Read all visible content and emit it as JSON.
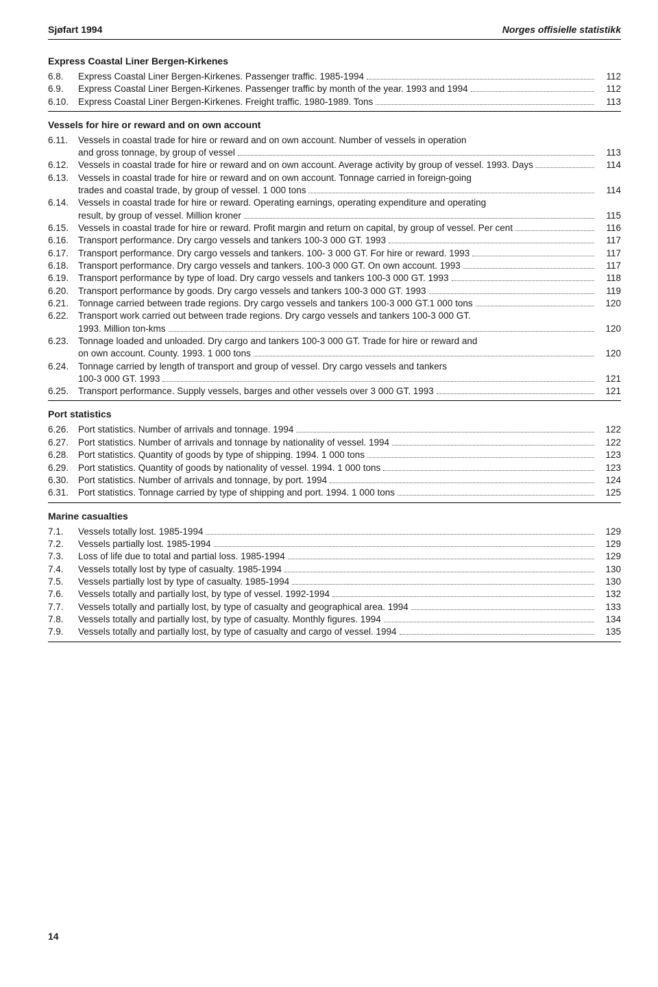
{
  "header": {
    "left": "Sjøfart 1994",
    "right": "Norges offisielle statistikk"
  },
  "sections": [
    {
      "heading": "Express Coastal Liner Bergen-Kirkenes",
      "entries": [
        {
          "num": "6.8.",
          "text": "Express Coastal Liner Bergen-Kirkenes.  Passenger traffic.  1985-1994",
          "page": "112"
        },
        {
          "num": "6.9.",
          "text": "Express Coastal Liner Bergen-Kirkenes.  Passenger traffic by month of the year.  1993 and 1994",
          "page": "112"
        },
        {
          "num": "6.10.",
          "text": "Express Coastal Liner Bergen-Kirkenes.  Freight traffic.  1980-1989.  Tons",
          "page": "113"
        }
      ]
    },
    {
      "heading": "Vessels for hire or reward and on own account",
      "entries": [
        {
          "num": "6.11.",
          "text": "Vessels in coastal trade for hire or reward and on own account.  Number of vessels in operation",
          "cont": "and gross tonnage, by group of vessel",
          "page": "113"
        },
        {
          "num": "6.12.",
          "text": "Vessels in coastal trade for hire or reward and on own account.  Average activity by group of vessel.  1993. Days",
          "page": "114"
        },
        {
          "num": "6.13.",
          "text": "Vessels in coastal trade for hire or reward and on own account.  Tonnage carried in foreign-going",
          "cont": "trades and coastal trade, by group of vessel.  1 000 tons",
          "page": "114"
        },
        {
          "num": "6.14.",
          "text": "Vessels in coastal trade for hire or reward.  Operating earnings, operating expenditure and operating",
          "cont": "result, by group of vessel.  Million kroner",
          "page": "115"
        },
        {
          "num": "6.15.",
          "text": "Vessels in coastal trade for hire or reward.  Profit margin and return on capital, by group of vessel.  Per cent",
          "page": "116"
        },
        {
          "num": "6.16.",
          "text": "Transport performance. Dry cargo vessels and tankers 100-3 000 GT. 1993",
          "page": "117"
        },
        {
          "num": "6.17.",
          "text": "Transport performance. Dry cargo vessels and tankers. 100- 3 000 GT. For hire or reward. 1993",
          "page": "117"
        },
        {
          "num": "6.18.",
          "text": "Transport performance. Dry cargo vessels and tankers. 100-3 000 GT. On own account. 1993",
          "page": "117"
        },
        {
          "num": "6.19.",
          "text": "Transport performance by type of load. Dry cargo vessels and tankers 100-3 000 GT. 1993",
          "page": "118"
        },
        {
          "num": "6.20.",
          "text": "Transport performance by goods. Dry cargo vessels and tankers 100-3 000 GT. 1993",
          "page": "119"
        },
        {
          "num": "6.21.",
          "text": "Tonnage carried between trade regions. Dry cargo vessels and tankers 100-3 000 GT.1 000 tons",
          "page": "120"
        },
        {
          "num": "6.22.",
          "text": "Transport work carried out between trade regions. Dry cargo vessels and tankers 100-3 000 GT.",
          "cont": "1993. Million ton-kms",
          "page": "120"
        },
        {
          "num": "6.23.",
          "text": "Tonnage loaded and unloaded. Dry cargo and tankers 100-3 000 GT. Trade for hire or reward and",
          "cont": "on own account. County. 1993. 1 000 tons",
          "page": "120"
        },
        {
          "num": "6.24.",
          "text": "Tonnage carried by length of transport and group of vessel. Dry cargo vessels and tankers",
          "cont": "100-3 000 GT. 1993",
          "page": "121"
        },
        {
          "num": "6.25.",
          "text": "Transport performance. Supply vessels, barges and other vessels over 3 000 GT. 1993",
          "page": "121"
        }
      ]
    },
    {
      "heading": "Port statistics",
      "entries": [
        {
          "num": "6.26.",
          "text": "Port statistics.  Number of arrivals and tonnage. 1994",
          "page": "122"
        },
        {
          "num": "6.27.",
          "text": "Port statistics.  Number of arrivals and tonnage by nationality of vessel. 1994",
          "page": "122"
        },
        {
          "num": "6.28.",
          "text": "Port statistics.  Quantity of goods by type of shipping. 1994. 1 000 tons",
          "page": "123"
        },
        {
          "num": "6.29.",
          "text": "Port statistics.  Quantity of goods by nationality of vessel. 1994. 1 000 tons",
          "page": "123"
        },
        {
          "num": "6.30.",
          "text": "Port statistics. Number of arrivals and tonnage, by port. 1994",
          "page": "124"
        },
        {
          "num": "6.31.",
          "text": "Port statistics. Tonnage carried by type of shipping and port. 1994. 1 000 tons",
          "page": "125"
        }
      ]
    },
    {
      "heading": "Marine casualties",
      "entries": [
        {
          "num": "7.1.",
          "text": "Vessels totally lost.  1985-1994",
          "page": "129"
        },
        {
          "num": "7.2.",
          "text": "Vessels partially lost.  1985-1994",
          "page": "129"
        },
        {
          "num": "7.3.",
          "text": "Loss of life due to total and partial loss. 1985-1994",
          "page": "129"
        },
        {
          "num": "7.4.",
          "text": "Vessels totally lost by type of casualty.  1985-1994",
          "page": "130"
        },
        {
          "num": "7.5.",
          "text": "Vessels partially lost by type of casualty.  1985-1994",
          "page": "130"
        },
        {
          "num": "7.6.",
          "text": "Vessels totally and partially lost, by type of vessel.  1992-1994",
          "page": "132"
        },
        {
          "num": "7.7.",
          "text": "Vessels totally and partially lost, by type of casualty and geographical area.  1994",
          "page": "133"
        },
        {
          "num": "7.8.",
          "text": "Vessels totally and partially lost, by type of casualty.  Monthly figures.  1994",
          "page": "134"
        },
        {
          "num": "7.9.",
          "text": "Vessels totally and partially lost, by type of casualty and cargo of vessel.  1994",
          "page": "135"
        }
      ]
    }
  ],
  "footer_page": "14"
}
